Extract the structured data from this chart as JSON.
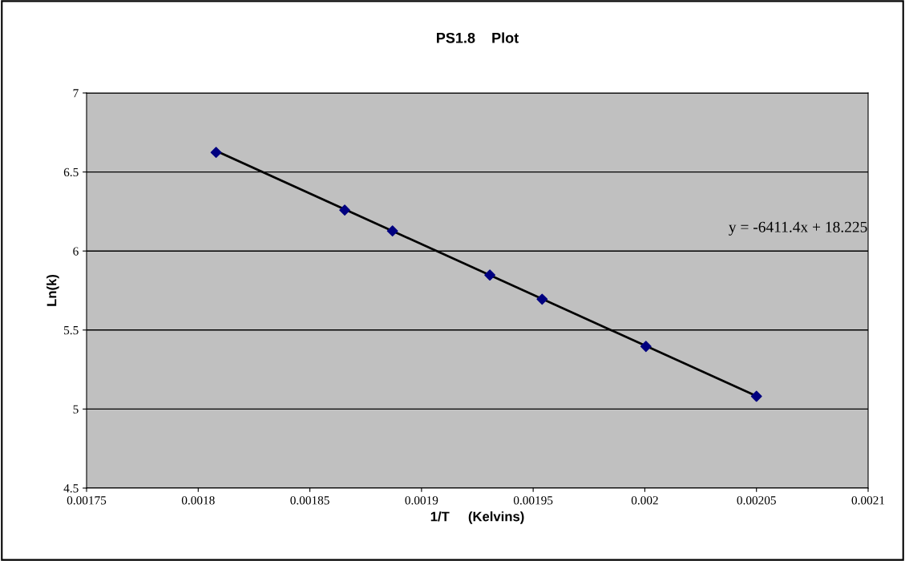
{
  "chart_data": {
    "type": "scatter",
    "title": "PS1.8    Plot",
    "xlabel": "1/T     (Kelvins)",
    "ylabel": "Ln(k)",
    "series": [
      {
        "color": "#000080",
        "marker": "diamond",
        "x": [
          0.001808,
          0.0018656,
          0.001887,
          0.0019306,
          0.001954,
          0.0020005,
          0.00205
        ],
        "values": [
          6.624,
          6.259,
          6.127,
          5.848,
          5.695,
          5.396,
          5.081
        ]
      },
      {
        "type": "line",
        "color": "#000000",
        "marker": "none",
        "line_style": "solid",
        "x": [
          0.001808,
          0.00205
        ],
        "values": [
          6.633,
          5.082
        ]
      }
    ],
    "annotations": [
      "y = -6411.4x + 18.225"
    ],
    "xlim": [
      0.00175,
      0.0021
    ],
    "xticks": [
      0.00175,
      0.0018,
      0.00185,
      0.0019,
      0.00195,
      0.002,
      0.00205,
      0.0021
    ],
    "ylim": [
      4.5,
      7
    ],
    "yticks": [
      4.5,
      5,
      5.5,
      6,
      6.5,
      7
    ],
    "grid": "y",
    "legend": false
  }
}
